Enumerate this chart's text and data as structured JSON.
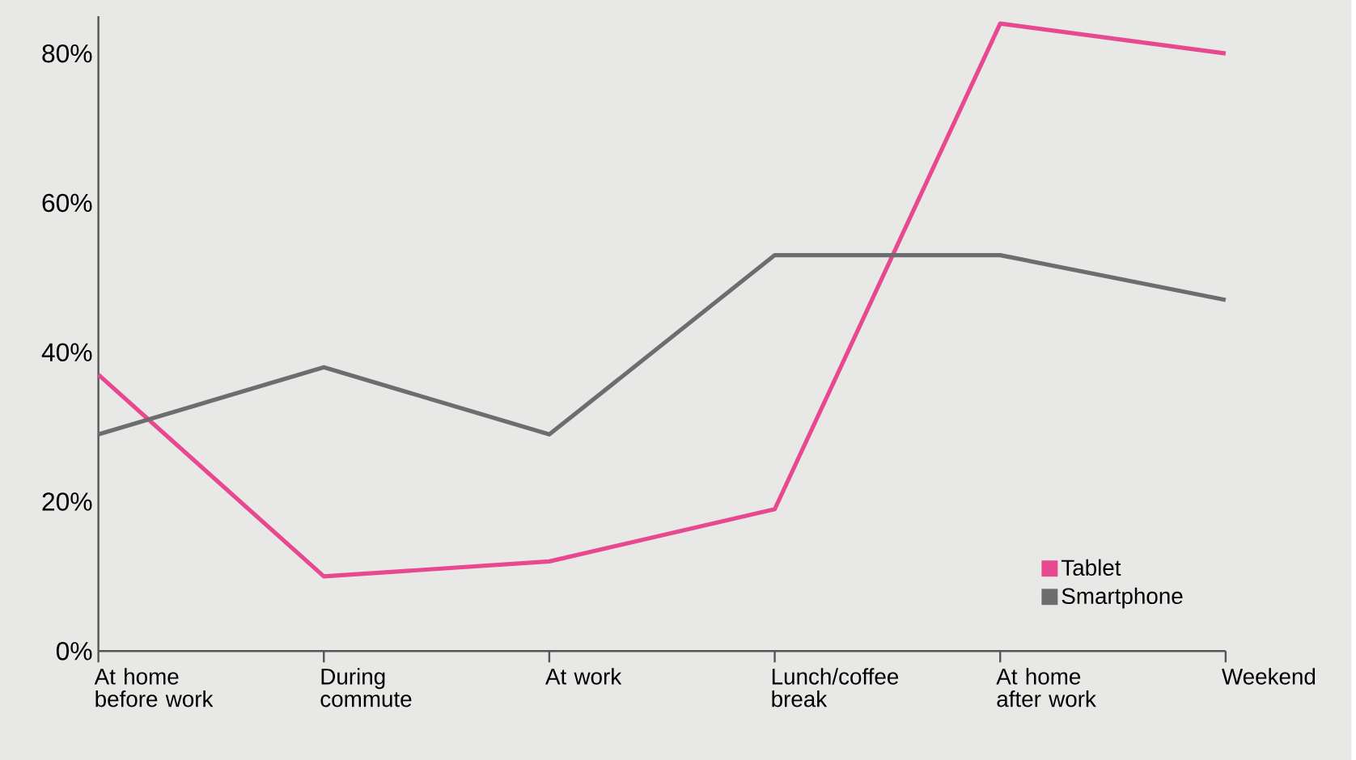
{
  "chart_data": {
    "type": "line",
    "categories": [
      "At home before work",
      "During commute",
      "At work",
      "Lunch/coffee break",
      "At home after work",
      "Weekend"
    ],
    "series": [
      {
        "name": "Tablet",
        "color": "#e8488f",
        "values": [
          37,
          10,
          12,
          19,
          84,
          80
        ]
      },
      {
        "name": "Smartphone",
        "color": "#6d6d6f",
        "values": [
          29,
          38,
          29,
          53,
          53,
          47
        ]
      }
    ],
    "ylim": [
      0,
      85
    ],
    "yticks": [
      {
        "value": 0,
        "label": "0%"
      },
      {
        "value": 20,
        "label": "20%"
      },
      {
        "value": 40,
        "label": "40%"
      },
      {
        "value": 60,
        "label": "60%"
      },
      {
        "value": 80,
        "label": "80%"
      }
    ],
    "grid": false,
    "legend": "bottom right",
    "marker": "none",
    "line_style": "solid"
  }
}
